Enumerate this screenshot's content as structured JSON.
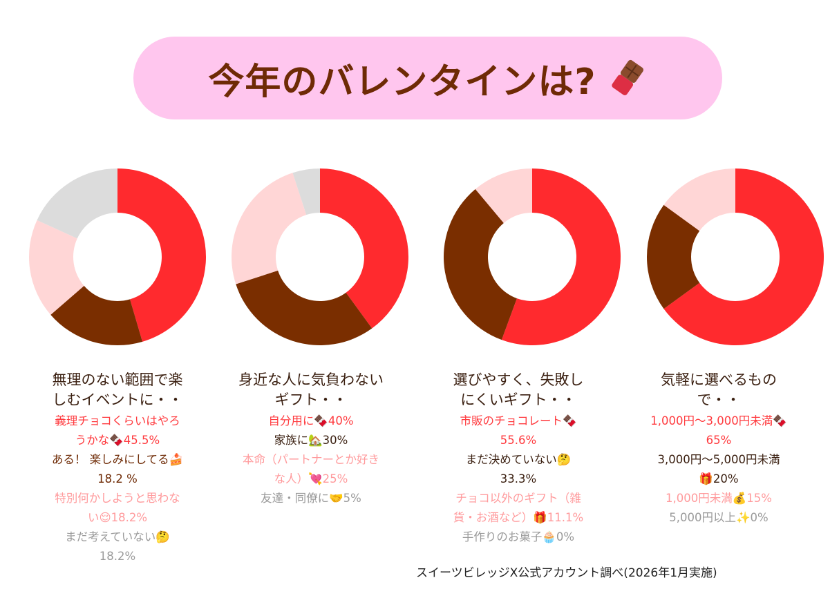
{
  "title": "今年のバレンタインは?",
  "title_icon": "chocolate-bar-icon",
  "colors": {
    "red": "#ff2a2e",
    "brown": "#7a2e00",
    "pink": "#ffd6d6",
    "gray": "#dcdcdc",
    "text_red": "#ff3b3f",
    "text_brown": "#6e2a05",
    "text_pink": "#ff9a9c",
    "text_gray": "#9a9a9a"
  },
  "chart_data": [
    {
      "type": "pie",
      "heading": "無理のない範囲で楽しむイベントに・・",
      "heading_lines": [
        "無理のない範囲で楽",
        "しむイベントに・・"
      ],
      "slices": [
        {
          "label_lines": [
            "義理チョコくらいはやろ",
            "うかな🍫45.5%"
          ],
          "value": 45.5,
          "color": "#ff2a2e",
          "text_color": "#ff3b3f"
        },
        {
          "label_lines": [
            "ある！ 楽しみにしてる🍰",
            "18.2 %"
          ],
          "value": 18.2,
          "color": "#7a2e00",
          "text_color": "#6e2a05"
        },
        {
          "label_lines": [
            "特別何かしようと思わな",
            "い😌18.2%"
          ],
          "value": 18.2,
          "color": "#ffd6d6",
          "text_color": "#ff9a9c"
        },
        {
          "label_lines": [
            "まだ考えていない🤔",
            "18.2%"
          ],
          "value": 18.2,
          "color": "#dcdcdc",
          "text_color": "#9a9a9a"
        }
      ]
    },
    {
      "type": "pie",
      "heading": "身近な人に気負わないギフト・・",
      "heading_lines": [
        "身近な人に気負わない",
        "ギフト・・"
      ],
      "slices": [
        {
          "label_lines": [
            "自分用に🍫40%"
          ],
          "value": 40,
          "color": "#ff2a2e",
          "text_color": "#ff3b3f"
        },
        {
          "label_lines": [
            "家族に🏡30%"
          ],
          "value": 30,
          "color": "#7a2e00",
          "text_color": "#3a1f10"
        },
        {
          "label_lines": [
            "本命（パートナーとか好き",
            "な人）💘25%"
          ],
          "value": 25,
          "color": "#ffd6d6",
          "text_color": "#ff9a9c"
        },
        {
          "label_lines": [
            "友達・同僚に🤝5%"
          ],
          "value": 5,
          "color": "#dcdcdc",
          "text_color": "#9a9a9a"
        }
      ]
    },
    {
      "type": "pie",
      "heading": "選びやすく、失敗しにくいギフト・・",
      "heading_lines": [
        "選びやすく、失敗し",
        "にくいギフト・・"
      ],
      "slices": [
        {
          "label_lines": [
            "市販のチョコレート🍫",
            "55.6%"
          ],
          "value": 55.6,
          "color": "#ff2a2e",
          "text_color": "#ff3b3f"
        },
        {
          "label_lines": [
            "まだ決めていない🤔",
            "33.3%"
          ],
          "value": 33.3,
          "color": "#7a2e00",
          "text_color": "#3a1f10"
        },
        {
          "label_lines": [
            "チョコ以外のギフト（雑",
            "貨・お酒など）🎁11.1%"
          ],
          "value": 11.1,
          "color": "#ffd6d6",
          "text_color": "#ff9a9c"
        },
        {
          "label_lines": [
            "手作りのお菓子🧁0%"
          ],
          "value": 0,
          "color": "#dcdcdc",
          "text_color": "#9a9a9a"
        }
      ]
    },
    {
      "type": "pie",
      "heading": "気軽に選べるもので・・",
      "heading_lines": [
        "気軽に選べるもの",
        "で・・"
      ],
      "slices": [
        {
          "label_lines": [
            "1,000円〜3,000円未満🍫",
            "65%"
          ],
          "value": 65,
          "color": "#ff2a2e",
          "text_color": "#ff3b3f"
        },
        {
          "label_lines": [
            "3,000円〜5,000円未満",
            "🎁20%"
          ],
          "value": 20,
          "color": "#7a2e00",
          "text_color": "#3a1f10"
        },
        {
          "label_lines": [
            "1,000円未満💰15%"
          ],
          "value": 15,
          "color": "#ffd6d6",
          "text_color": "#ff9a9c"
        },
        {
          "label_lines": [
            "5,000円以上✨0%"
          ],
          "value": 0,
          "color": "#dcdcdc",
          "text_color": "#9a9a9a"
        }
      ]
    }
  ],
  "footnote": "スイーツビレッジX公式アカウント調べ(2026年1月実施)"
}
